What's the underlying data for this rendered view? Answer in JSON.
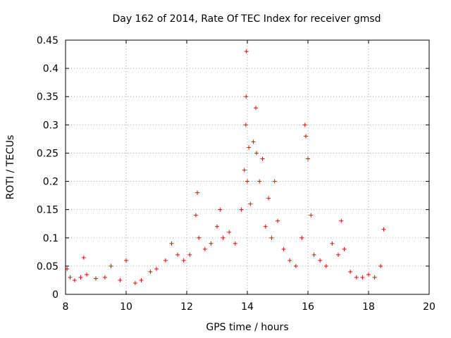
{
  "chart_data": {
    "type": "scatter",
    "title": "Day 162 of 2014, Rate Of TEC Index for receiver gmsd",
    "xlabel": "GPS time / hours",
    "ylabel": "ROTI / TECUs",
    "xlim": [
      8,
      20
    ],
    "ylim": [
      0,
      0.45
    ],
    "x_ticks": [
      "8",
      "10",
      "12",
      "14",
      "16",
      "18",
      "20"
    ],
    "y_ticks": [
      "0",
      "0.05",
      "0.1",
      "0.15",
      "0.2",
      "0.25",
      "0.3",
      "0.35",
      "0.4",
      "0.45"
    ],
    "grid": true,
    "marker": "+",
    "marker_color": "#ff0000",
    "series": [
      {
        "name": "ROTI",
        "x": [
          8.05,
          8.15,
          8.3,
          8.5,
          8.6,
          8.7,
          9.0,
          9.3,
          9.5,
          9.8,
          10.0,
          10.3,
          10.5,
          10.8,
          11.0,
          11.3,
          11.5,
          11.7,
          11.9,
          12.1,
          12.3,
          12.35,
          12.4,
          12.6,
          12.8,
          13.0,
          13.1,
          13.2,
          13.4,
          13.6,
          13.8,
          13.9,
          13.95,
          13.96,
          13.97,
          14.0,
          14.05,
          14.1,
          14.2,
          14.28,
          14.3,
          14.4,
          14.5,
          14.6,
          14.7,
          14.8,
          14.9,
          15.0,
          15.2,
          15.4,
          15.6,
          15.8,
          15.9,
          15.93,
          16.0,
          16.1,
          16.2,
          16.4,
          16.6,
          16.8,
          17.0,
          17.1,
          17.2,
          17.4,
          17.6,
          17.8,
          18.0,
          18.2,
          18.4,
          18.5
        ],
        "y": [
          0.045,
          0.03,
          0.025,
          0.03,
          0.065,
          0.035,
          0.028,
          0.03,
          0.05,
          0.025,
          0.06,
          0.02,
          0.025,
          0.04,
          0.045,
          0.06,
          0.09,
          0.07,
          0.06,
          0.07,
          0.14,
          0.18,
          0.1,
          0.08,
          0.09,
          0.12,
          0.15,
          0.1,
          0.11,
          0.09,
          0.15,
          0.22,
          0.3,
          0.35,
          0.43,
          0.2,
          0.26,
          0.16,
          0.27,
          0.33,
          0.25,
          0.2,
          0.24,
          0.12,
          0.17,
          0.1,
          0.2,
          0.13,
          0.08,
          0.06,
          0.05,
          0.1,
          0.3,
          0.28,
          0.24,
          0.14,
          0.07,
          0.06,
          0.05,
          0.09,
          0.07,
          0.13,
          0.08,
          0.04,
          0.03,
          0.03,
          0.035,
          0.03,
          0.05,
          0.115
        ]
      }
    ]
  }
}
